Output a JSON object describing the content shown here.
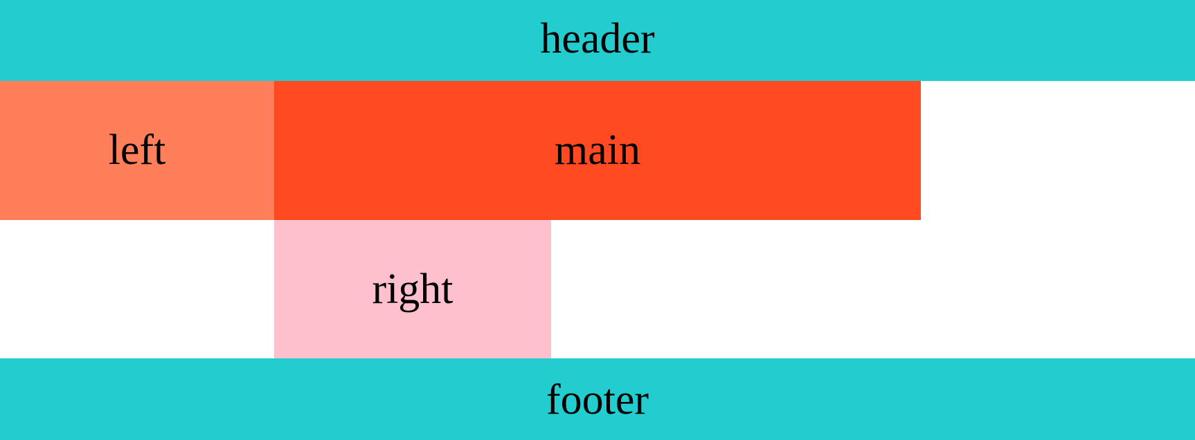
{
  "regions": {
    "header": {
      "label": "header",
      "color": "#22CCCF"
    },
    "left": {
      "label": "left",
      "color": "#FF7F5A"
    },
    "main": {
      "label": "main",
      "color": "#FF4A21"
    },
    "right": {
      "label": "right",
      "color": "#FFC0CD"
    },
    "footer": {
      "label": "footer",
      "color": "#22CCCF"
    }
  }
}
